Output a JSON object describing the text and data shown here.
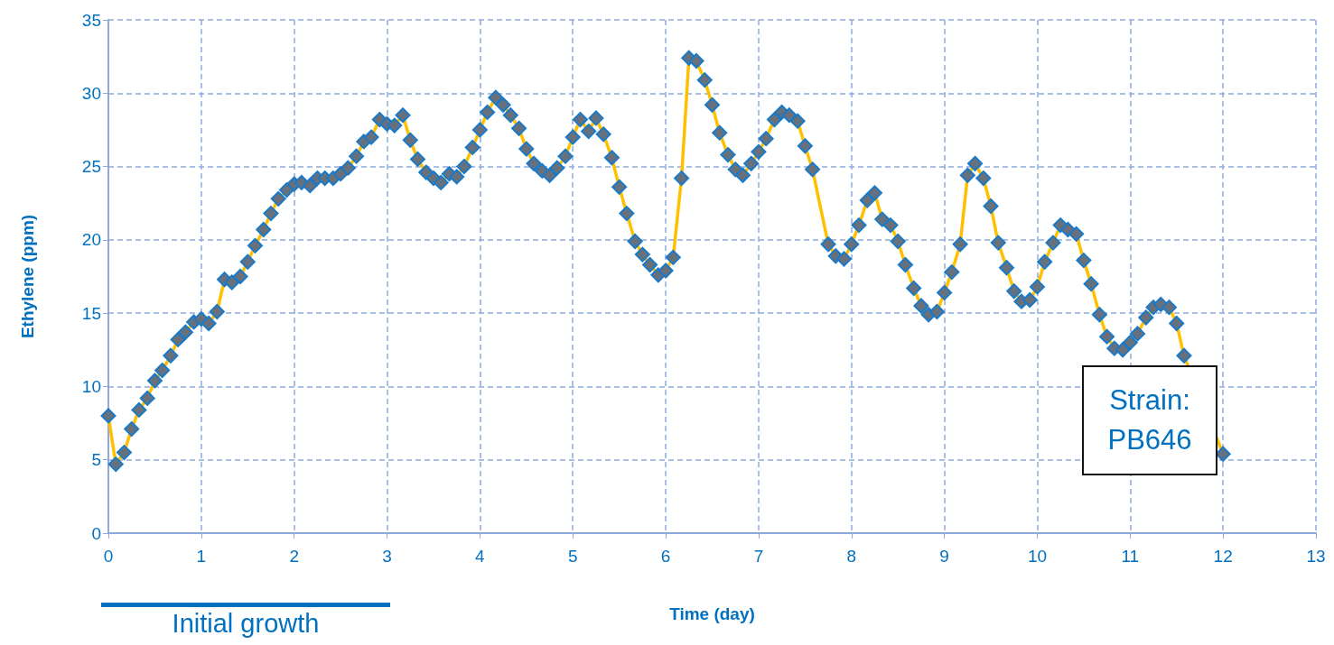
{
  "chart_data": {
    "type": "line",
    "xlabel": "Time (day)",
    "ylabel": "Ethylene (ppm)",
    "xlim": [
      0,
      13
    ],
    "xticks": [
      0,
      1,
      2,
      3,
      4,
      5,
      6,
      7,
      8,
      9,
      10,
      11,
      12,
      13
    ],
    "ylim": [
      0,
      35
    ],
    "yticks": [
      0,
      5,
      10,
      15,
      20,
      25,
      30,
      35
    ],
    "grid": true,
    "marker": "diamond",
    "line_style": "solid",
    "annotations": [
      "Strain: PB646",
      "Initial growth"
    ],
    "series": [
      {
        "color": "#ffc000",
        "x": [
          0,
          0.08,
          0.17,
          0.25,
          0.33,
          0.42,
          0.5,
          0.58,
          0.67,
          0.75,
          0.83,
          0.92,
          1.0,
          1.08,
          1.17,
          1.25,
          1.33,
          1.42,
          1.5,
          1.58,
          1.67,
          1.75,
          1.83,
          1.92,
          2.0,
          2.08,
          2.17,
          2.25,
          2.33,
          2.42,
          2.5,
          2.58,
          2.67,
          2.75,
          2.83,
          2.92,
          3.0,
          3.08,
          3.17,
          3.25,
          3.33,
          3.42,
          3.5,
          3.58,
          3.67,
          3.75,
          3.83,
          3.92,
          4.0,
          4.08,
          4.17,
          4.25,
          4.33,
          4.42,
          4.5,
          4.58,
          4.67,
          4.75,
          4.83,
          4.92,
          5.0,
          5.08,
          5.17,
          5.25,
          5.33,
          5.42,
          5.5,
          5.58,
          5.67,
          5.75,
          5.83,
          5.92,
          6.0,
          6.08,
          6.17,
          6.25,
          6.33,
          6.42,
          6.5,
          6.58,
          6.67,
          6.75,
          6.83,
          6.92,
          7.0,
          7.08,
          7.17,
          7.25,
          7.33,
          7.42,
          7.5,
          7.58,
          7.75,
          7.83,
          7.92,
          8.0,
          8.08,
          8.17,
          8.25,
          8.33,
          8.42,
          8.5,
          8.58,
          8.67,
          8.75,
          8.83,
          8.92,
          9.0,
          9.08,
          9.17,
          9.25,
          9.33,
          9.42,
          9.5,
          9.58,
          9.67,
          9.75,
          9.83,
          9.92,
          10.0,
          10.08,
          10.17,
          10.25,
          10.33,
          10.42,
          10.5,
          10.58,
          10.67,
          10.75,
          10.83,
          10.92,
          11.0,
          11.08,
          11.17,
          11.25,
          11.33,
          11.42,
          11.5,
          11.58,
          12.0
        ],
        "values": [
          8.0,
          4.7,
          5.5,
          7.1,
          8.4,
          9.2,
          10.4,
          11.1,
          12.1,
          13.2,
          13.7,
          14.4,
          14.6,
          14.3,
          15.1,
          17.3,
          17.1,
          17.5,
          18.5,
          19.6,
          20.7,
          21.8,
          22.8,
          23.4,
          23.8,
          23.9,
          23.7,
          24.2,
          24.2,
          24.2,
          24.5,
          24.9,
          25.7,
          26.7,
          27.0,
          28.2,
          27.9,
          27.8,
          28.5,
          26.8,
          25.5,
          24.6,
          24.2,
          23.9,
          24.5,
          24.3,
          25.0,
          26.3,
          27.5,
          28.7,
          29.7,
          29.2,
          28.5,
          27.6,
          26.2,
          25.2,
          24.7,
          24.4,
          24.9,
          25.7,
          27.0,
          28.2,
          27.4,
          28.3,
          27.2,
          25.6,
          23.6,
          21.8,
          19.9,
          19.0,
          18.3,
          17.6,
          17.9,
          18.8,
          24.2,
          32.4,
          32.2,
          30.9,
          29.2,
          27.3,
          25.8,
          24.8,
          24.4,
          25.2,
          26.0,
          26.9,
          28.2,
          28.7,
          28.5,
          28.1,
          26.4,
          24.8,
          19.7,
          18.9,
          18.7,
          19.7,
          21.0,
          22.7,
          23.2,
          21.4,
          21.0,
          19.9,
          18.3,
          16.7,
          15.5,
          14.9,
          15.1,
          16.4,
          17.8,
          19.7,
          24.4,
          25.2,
          24.2,
          22.3,
          19.8,
          18.1,
          16.5,
          15.8,
          15.9,
          16.8,
          18.5,
          19.8,
          21.0,
          20.7,
          20.4,
          18.6,
          17.0,
          14.9,
          13.4,
          12.6,
          12.5,
          13.0,
          13.6,
          14.7,
          15.4,
          15.6,
          15.4,
          14.3,
          12.1,
          5.4
        ]
      }
    ]
  }
}
